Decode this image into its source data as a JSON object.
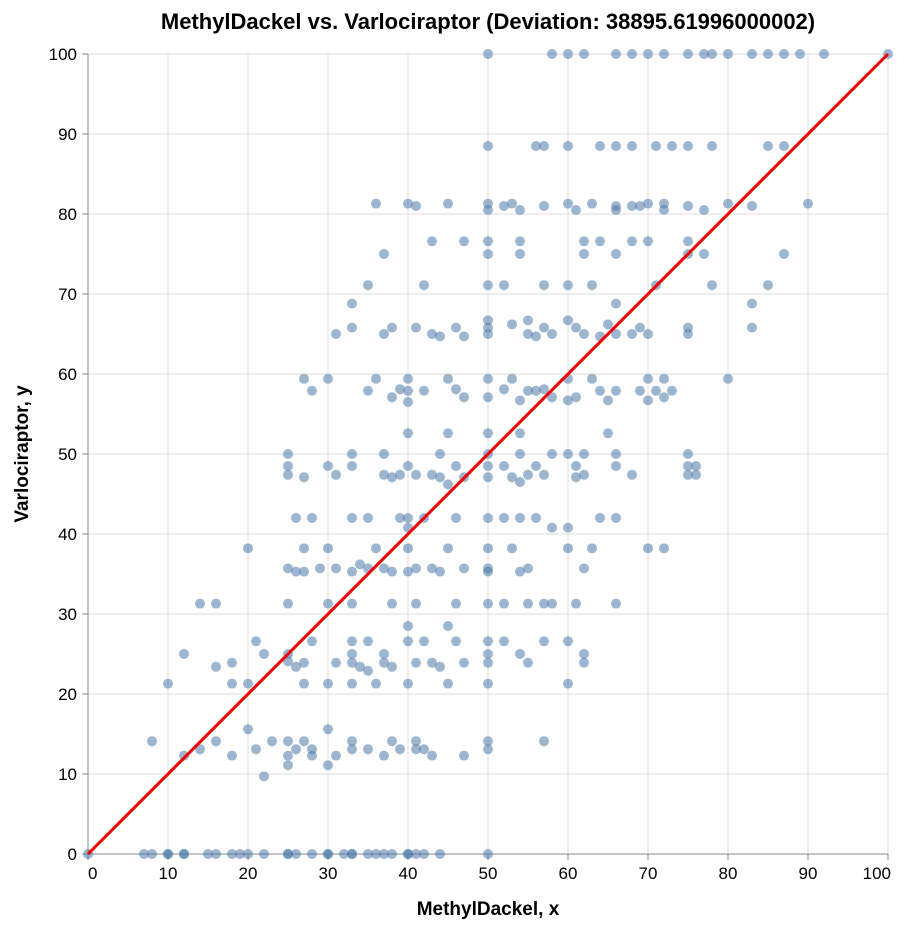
{
  "chart_data": {
    "type": "scatter",
    "title": "MethylDackel vs. Varlociraptor (Deviation: 38895.61996000002)",
    "xlabel": "MethylDackel, x",
    "ylabel": "Varlociraptor, y",
    "xlim": [
      0,
      100
    ],
    "ylim": [
      0,
      100
    ],
    "x_ticks": [
      "0",
      "10",
      "20",
      "30",
      "40",
      "50",
      "60",
      "70",
      "80",
      "90",
      "100"
    ],
    "y_ticks": [
      "0",
      "10",
      "20",
      "30",
      "40",
      "50",
      "60",
      "70",
      "80",
      "90",
      "100"
    ],
    "grid": true,
    "point_color": "#4c78a8",
    "line_color": "#ee0000",
    "reference_line": {
      "x": [
        0,
        100
      ],
      "y": [
        0,
        100
      ]
    },
    "points": [
      [
        0,
        0
      ],
      [
        7,
        0
      ],
      [
        8,
        0
      ],
      [
        10,
        0
      ],
      [
        10,
        0
      ],
      [
        12,
        0
      ],
      [
        12,
        0
      ],
      [
        15,
        0
      ],
      [
        16,
        0
      ],
      [
        18,
        0
      ],
      [
        19,
        0
      ],
      [
        20,
        0
      ],
      [
        22,
        0
      ],
      [
        25,
        0
      ],
      [
        25,
        0
      ],
      [
        26,
        0
      ],
      [
        28,
        0
      ],
      [
        30,
        0
      ],
      [
        30,
        0
      ],
      [
        32,
        0
      ],
      [
        33,
        0
      ],
      [
        33,
        0
      ],
      [
        35,
        0
      ],
      [
        36,
        0
      ],
      [
        37,
        0
      ],
      [
        38,
        0
      ],
      [
        40,
        0
      ],
      [
        40,
        0
      ],
      [
        41,
        0
      ],
      [
        42,
        0
      ],
      [
        44,
        0
      ],
      [
        50,
        0
      ],
      [
        8,
        14.1
      ],
      [
        10,
        21.3
      ],
      [
        12,
        12.3
      ],
      [
        12,
        25
      ],
      [
        14,
        13.1
      ],
      [
        14,
        31.3
      ],
      [
        16,
        14.1
      ],
      [
        16,
        23.4
      ],
      [
        16,
        31.3
      ],
      [
        18,
        12.3
      ],
      [
        18,
        21.3
      ],
      [
        18,
        23.9
      ],
      [
        20,
        15.6
      ],
      [
        20,
        21.3
      ],
      [
        20,
        38.2
      ],
      [
        21,
        13.1
      ],
      [
        21,
        26.6
      ],
      [
        22,
        9.7
      ],
      [
        22,
        25
      ],
      [
        23,
        14.1
      ],
      [
        25,
        11.1
      ],
      [
        25,
        12.3
      ],
      [
        25,
        14.1
      ],
      [
        25,
        24.1
      ],
      [
        25,
        25
      ],
      [
        25,
        31.3
      ],
      [
        25,
        35.7
      ],
      [
        25,
        47.4
      ],
      [
        25,
        48.5
      ],
      [
        25,
        50
      ],
      [
        26,
        13.1
      ],
      [
        26,
        23.4
      ],
      [
        26,
        35.3
      ],
      [
        26,
        42
      ],
      [
        27,
        14.1
      ],
      [
        27,
        21.3
      ],
      [
        27,
        23.9
      ],
      [
        27,
        35.3
      ],
      [
        27,
        38.2
      ],
      [
        27,
        47.1
      ],
      [
        27,
        59.4
      ],
      [
        28,
        12.3
      ],
      [
        28,
        13.1
      ],
      [
        28,
        26.6
      ],
      [
        28,
        42
      ],
      [
        28,
        57.9
      ],
      [
        29,
        35.7
      ],
      [
        30,
        11.1
      ],
      [
        30,
        15.6
      ],
      [
        30,
        21.3
      ],
      [
        30,
        38.2
      ],
      [
        30,
        31.3
      ],
      [
        30,
        48.5
      ],
      [
        30,
        59.4
      ],
      [
        31,
        12.3
      ],
      [
        31,
        23.9
      ],
      [
        31,
        35.7
      ],
      [
        31,
        47.4
      ],
      [
        31,
        65
      ],
      [
        33,
        13.1
      ],
      [
        33,
        14.1
      ],
      [
        33,
        21.3
      ],
      [
        33,
        23.9
      ],
      [
        33,
        25
      ],
      [
        33,
        26.6
      ],
      [
        33,
        31.3
      ],
      [
        33,
        35.3
      ],
      [
        33,
        42
      ],
      [
        33,
        48.5
      ],
      [
        33,
        50
      ],
      [
        33,
        68.8
      ],
      [
        33,
        65.8
      ],
      [
        34,
        23.4
      ],
      [
        34,
        36.2
      ],
      [
        35,
        13.1
      ],
      [
        35,
        22.9
      ],
      [
        35,
        26.6
      ],
      [
        35,
        35.7
      ],
      [
        35,
        42
      ],
      [
        35,
        57.9
      ],
      [
        35,
        71.1
      ],
      [
        36,
        21.3
      ],
      [
        36,
        38.2
      ],
      [
        36,
        59.4
      ],
      [
        36,
        81.3
      ],
      [
        37,
        12.3
      ],
      [
        37,
        23.9
      ],
      [
        37,
        25
      ],
      [
        37,
        35.7
      ],
      [
        37,
        47.4
      ],
      [
        37,
        50
      ],
      [
        37,
        65
      ],
      [
        37,
        75
      ],
      [
        38,
        14.1
      ],
      [
        38,
        23.4
      ],
      [
        38,
        31.3
      ],
      [
        38,
        35.3
      ],
      [
        38,
        47.1
      ],
      [
        38,
        57.1
      ],
      [
        38,
        65.8
      ],
      [
        39,
        13.1
      ],
      [
        39,
        42
      ],
      [
        39,
        47.4
      ],
      [
        39,
        58.1
      ],
      [
        40,
        21.3
      ],
      [
        40,
        26.6
      ],
      [
        40,
        28.5
      ],
      [
        40,
        35.3
      ],
      [
        40,
        38.2
      ],
      [
        40,
        42
      ],
      [
        40,
        40.8
      ],
      [
        40,
        48.5
      ],
      [
        40,
        52.6
      ],
      [
        40,
        56.5
      ],
      [
        40,
        57.9
      ],
      [
        40,
        59.4
      ],
      [
        40,
        81.3
      ],
      [
        41,
        13.1
      ],
      [
        41,
        14.1
      ],
      [
        41,
        23.9
      ],
      [
        41,
        31.3
      ],
      [
        41,
        35.7
      ],
      [
        41,
        47.4
      ],
      [
        41,
        65.8
      ],
      [
        41,
        81
      ],
      [
        42,
        13.1
      ],
      [
        42,
        26.6
      ],
      [
        42,
        42
      ],
      [
        42,
        57.9
      ],
      [
        42,
        71.1
      ],
      [
        43,
        12.3
      ],
      [
        43,
        23.9
      ],
      [
        43,
        35.7
      ],
      [
        43,
        47.4
      ],
      [
        43,
        65
      ],
      [
        43,
        76.6
      ],
      [
        44,
        23.4
      ],
      [
        44,
        35.3
      ],
      [
        44,
        47.1
      ],
      [
        44,
        50
      ],
      [
        44,
        64.7
      ],
      [
        45,
        21.3
      ],
      [
        45,
        28.5
      ],
      [
        45,
        38.2
      ],
      [
        45,
        46.2
      ],
      [
        45,
        52.6
      ],
      [
        45,
        59.4
      ],
      [
        45,
        81.3
      ],
      [
        46,
        26.6
      ],
      [
        46,
        31.3
      ],
      [
        46,
        42
      ],
      [
        46,
        48.5
      ],
      [
        46,
        58.1
      ],
      [
        46,
        65.8
      ],
      [
        47,
        12.3
      ],
      [
        47,
        23.9
      ],
      [
        47,
        35.7
      ],
      [
        47,
        47.1
      ],
      [
        47,
        57.1
      ],
      [
        47,
        64.7
      ],
      [
        47,
        76.6
      ],
      [
        50,
        13.1
      ],
      [
        50,
        14.1
      ],
      [
        50,
        21.3
      ],
      [
        50,
        23.9
      ],
      [
        50,
        25
      ],
      [
        50,
        26.6
      ],
      [
        50,
        31.3
      ],
      [
        50,
        35.3
      ],
      [
        50,
        35.7
      ],
      [
        50,
        38.2
      ],
      [
        50,
        42
      ],
      [
        50,
        47.1
      ],
      [
        50,
        48.5
      ],
      [
        50,
        50
      ],
      [
        50,
        52.6
      ],
      [
        50,
        57.1
      ],
      [
        50,
        59.4
      ],
      [
        50,
        65
      ],
      [
        50,
        65.8
      ],
      [
        50,
        66.7
      ],
      [
        50,
        71.1
      ],
      [
        50,
        75
      ],
      [
        50,
        76.6
      ],
      [
        50,
        80.5
      ],
      [
        50,
        81.3
      ],
      [
        50,
        88.5
      ],
      [
        50,
        100
      ],
      [
        52,
        26.6
      ],
      [
        52,
        31.3
      ],
      [
        52,
        42
      ],
      [
        52,
        48.5
      ],
      [
        52,
        58.1
      ],
      [
        52,
        71.1
      ],
      [
        52,
        81
      ],
      [
        53,
        38.2
      ],
      [
        53,
        47.1
      ],
      [
        53,
        59.4
      ],
      [
        53,
        66.2
      ],
      [
        53,
        81.3
      ],
      [
        54,
        25
      ],
      [
        54,
        35.3
      ],
      [
        54,
        42
      ],
      [
        54,
        46.5
      ],
      [
        54,
        50
      ],
      [
        54,
        52.6
      ],
      [
        54,
        56.7
      ],
      [
        54,
        75
      ],
      [
        54,
        76.6
      ],
      [
        54,
        80.5
      ],
      [
        55,
        23.9
      ],
      [
        55,
        31.3
      ],
      [
        55,
        35.7
      ],
      [
        55,
        47.4
      ],
      [
        55,
        57.9
      ],
      [
        55,
        65
      ],
      [
        55,
        66.7
      ],
      [
        56,
        42
      ],
      [
        56,
        48.5
      ],
      [
        56,
        57.9
      ],
      [
        56,
        64.7
      ],
      [
        56,
        88.5
      ],
      [
        57,
        14.1
      ],
      [
        57,
        26.6
      ],
      [
        57,
        31.3
      ],
      [
        57,
        47.4
      ],
      [
        57,
        58.1
      ],
      [
        57,
        65.8
      ],
      [
        57,
        71.1
      ],
      [
        57,
        81
      ],
      [
        57,
        88.5
      ],
      [
        58,
        31.3
      ],
      [
        58,
        40.8
      ],
      [
        58,
        50
      ],
      [
        58,
        57.1
      ],
      [
        58,
        65
      ],
      [
        58,
        100
      ],
      [
        60,
        21.3
      ],
      [
        60,
        26.6
      ],
      [
        60,
        38.2
      ],
      [
        60,
        40.8
      ],
      [
        60,
        50
      ],
      [
        60,
        56.7
      ],
      [
        60,
        59.4
      ],
      [
        60,
        66.7
      ],
      [
        60,
        71.1
      ],
      [
        60,
        81.3
      ],
      [
        60,
        88.5
      ],
      [
        60,
        100
      ],
      [
        61,
        31.3
      ],
      [
        61,
        47.1
      ],
      [
        61,
        48.5
      ],
      [
        61,
        57.1
      ],
      [
        61,
        65.8
      ],
      [
        61,
        80.5
      ],
      [
        62,
        23.9
      ],
      [
        62,
        25
      ],
      [
        62,
        35.7
      ],
      [
        62,
        47.4
      ],
      [
        62,
        50
      ],
      [
        62,
        65
      ],
      [
        62,
        75
      ],
      [
        62,
        76.6
      ],
      [
        62,
        100
      ],
      [
        63,
        38.2
      ],
      [
        63,
        59.4
      ],
      [
        63,
        71.1
      ],
      [
        63,
        81.3
      ],
      [
        64,
        42
      ],
      [
        64,
        57.9
      ],
      [
        64,
        64.7
      ],
      [
        64,
        76.6
      ],
      [
        64,
        88.5
      ],
      [
        65,
        52.6
      ],
      [
        65,
        56.7
      ],
      [
        65,
        66.2
      ],
      [
        66,
        31.3
      ],
      [
        66,
        42
      ],
      [
        66,
        48.5
      ],
      [
        66,
        50
      ],
      [
        66,
        57.9
      ],
      [
        66,
        65
      ],
      [
        66,
        68.8
      ],
      [
        66,
        75
      ],
      [
        66,
        81
      ],
      [
        66,
        80.5
      ],
      [
        66,
        88.5
      ],
      [
        66,
        100
      ],
      [
        68,
        47.4
      ],
      [
        68,
        65
      ],
      [
        68,
        76.6
      ],
      [
        68,
        81
      ],
      [
        68,
        88.5
      ],
      [
        68,
        100
      ],
      [
        69,
        57.9
      ],
      [
        69,
        65.8
      ],
      [
        69,
        81
      ],
      [
        70,
        38.2
      ],
      [
        70,
        56.7
      ],
      [
        70,
        59.4
      ],
      [
        70,
        65
      ],
      [
        70,
        76.6
      ],
      [
        70,
        81.3
      ],
      [
        70,
        100
      ],
      [
        71,
        57.9
      ],
      [
        71,
        71.1
      ],
      [
        71,
        88.5
      ],
      [
        72,
        38.2
      ],
      [
        72,
        57.1
      ],
      [
        72,
        59.4
      ],
      [
        72,
        80.5
      ],
      [
        72,
        81.3
      ],
      [
        72,
        100
      ],
      [
        73,
        57.9
      ],
      [
        73,
        88.5
      ],
      [
        75,
        47.4
      ],
      [
        75,
        48.5
      ],
      [
        75,
        50
      ],
      [
        75,
        65
      ],
      [
        75,
        65.8
      ],
      [
        75,
        75
      ],
      [
        75,
        76.6
      ],
      [
        75,
        81
      ],
      [
        75,
        88.5
      ],
      [
        75,
        100
      ],
      [
        76,
        47.4
      ],
      [
        76,
        48.5
      ],
      [
        77,
        75
      ],
      [
        77,
        80.5
      ],
      [
        77,
        100
      ],
      [
        78,
        71.1
      ],
      [
        78,
        88.5
      ],
      [
        78,
        100
      ],
      [
        80,
        59.4
      ],
      [
        80,
        81.3
      ],
      [
        80,
        100
      ],
      [
        83,
        65.8
      ],
      [
        83,
        68.8
      ],
      [
        83,
        81
      ],
      [
        83,
        100
      ],
      [
        85,
        71.1
      ],
      [
        85,
        88.5
      ],
      [
        85,
        100
      ],
      [
        87,
        75
      ],
      [
        87,
        88.5
      ],
      [
        87,
        100
      ],
      [
        89,
        100
      ],
      [
        90,
        81.3
      ],
      [
        92,
        100
      ],
      [
        100,
        100
      ]
    ]
  }
}
